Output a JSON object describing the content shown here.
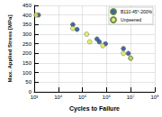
{
  "chart_data": {
    "type": "scatter",
    "x_label": "Cycles to Failure",
    "y_label": "Max. Applied Stress [MPa]",
    "log": "x",
    "grid": true,
    "legend": "top-right",
    "xlim": [
      1000,
      100000000
    ],
    "xticks": [
      {
        "value": 1000,
        "label": "10³"
      },
      {
        "value": 10000,
        "label": "10⁴"
      },
      {
        "value": 100000,
        "label": "10⁵"
      },
      {
        "value": 1000000,
        "label": "10⁶"
      },
      {
        "value": 10000000,
        "label": "10⁷"
      },
      {
        "value": 100000000,
        "label": "10⁸"
      }
    ],
    "ylim": [
      0,
      450
    ],
    "yticks": [
      0,
      50,
      100,
      150,
      200,
      250,
      300,
      350,
      400,
      450
    ],
    "series": [
      {
        "name": "B110-45°-200%",
        "color": "#1f3b9a",
        "marker": "circle",
        "x": [
          1500,
          40000,
          60000,
          400000,
          500000,
          900000,
          5000000,
          8000000,
          10000000
        ],
        "values": [
          400,
          350,
          325,
          275,
          260,
          250,
          225,
          200,
          175
        ]
      },
      {
        "name": "Unpeened",
        "color": "#e8e25a",
        "marker": "circle",
        "x": [
          1200,
          40000,
          150000,
          200000,
          700000,
          5000000,
          10000000
        ],
        "values": [
          400,
          330,
          300,
          260,
          240,
          200,
          175
        ]
      }
    ]
  }
}
